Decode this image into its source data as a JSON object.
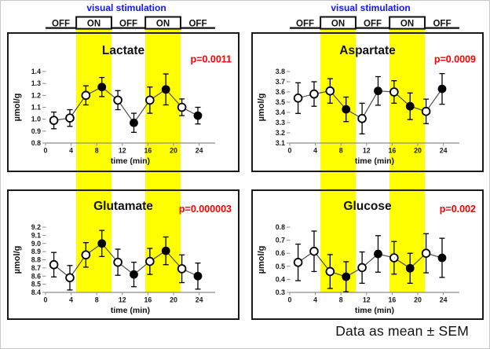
{
  "figure": {
    "caption": "Data as mean ± SEM",
    "colors": {
      "stimulation_blue": "#1414ff",
      "p_value_red": "#ff0000",
      "band_yellow": "#ffff00",
      "marker_black": "#000000",
      "axis_gray": "#8c8c8c",
      "line_gray": "#4d4d4d"
    }
  },
  "stimulation_header": {
    "title": "visual stimulation",
    "sequence": [
      "OFF",
      "ON",
      "OFF",
      "ON",
      "OFF"
    ],
    "on_periods_min": [
      [
        4.8,
        10.3
      ],
      [
        15.6,
        21.1
      ]
    ]
  },
  "chart_data": [
    {
      "type": "line",
      "column": 0,
      "slot": "top",
      "title": "Lactate",
      "p_label": "p=0.0011",
      "ylabel": "µmol/g",
      "xlabel": "time (min)",
      "ylim": [
        0.8,
        1.4
      ],
      "y_tick_step": 0.1,
      "y_decimals": 1,
      "xlim": [
        0,
        26.5
      ],
      "xticks": [
        0,
        4,
        8,
        12,
        16,
        20,
        24
      ],
      "on_bands_min": [
        [
          4.8,
          10.3
        ],
        [
          15.6,
          21.1
        ]
      ],
      "x": [
        1.3,
        3.8,
        6.3,
        8.8,
        11.3,
        13.8,
        16.3,
        18.8,
        21.3,
        23.8
      ],
      "y": [
        0.99,
        1.01,
        1.2,
        1.27,
        1.16,
        0.97,
        1.16,
        1.25,
        1.1,
        1.03
      ],
      "sem": [
        0.07,
        0.07,
        0.08,
        0.08,
        0.08,
        0.08,
        0.11,
        0.13,
        0.07,
        0.07
      ],
      "filled": [
        false,
        false,
        false,
        true,
        false,
        true,
        false,
        true,
        false,
        true
      ]
    },
    {
      "type": "line",
      "column": 1,
      "slot": "top",
      "title": "Aspartate",
      "p_label": "p=0.0009",
      "ylabel": "µmol/g",
      "xlabel": "time (min)",
      "ylim": [
        3.1,
        3.8
      ],
      "y_tick_step": 0.1,
      "y_decimals": 1,
      "xlim": [
        0,
        26.5
      ],
      "xticks": [
        0,
        4,
        8,
        12,
        16,
        20,
        24
      ],
      "on_bands_min": [
        [
          4.8,
          10.3
        ],
        [
          15.6,
          21.1
        ]
      ],
      "x": [
        1.3,
        3.8,
        6.3,
        8.8,
        11.3,
        13.8,
        16.3,
        18.8,
        21.3,
        23.8
      ],
      "y": [
        3.54,
        3.58,
        3.61,
        3.43,
        3.34,
        3.61,
        3.6,
        3.46,
        3.41,
        3.63
      ],
      "sem": [
        0.15,
        0.12,
        0.12,
        0.12,
        0.15,
        0.14,
        0.11,
        0.13,
        0.12,
        0.15
      ],
      "filled": [
        false,
        false,
        false,
        true,
        false,
        true,
        false,
        true,
        false,
        true
      ]
    },
    {
      "type": "line",
      "column": 0,
      "slot": "bottom",
      "title": "Glutamate",
      "p_label": "p=0.000003",
      "ylabel": "µmol/g",
      "xlabel": "time (min)",
      "ylim": [
        8.4,
        9.2
      ],
      "y_tick_step": 0.1,
      "y_decimals": 1,
      "xlim": [
        0,
        26.5
      ],
      "xticks": [
        0,
        4,
        8,
        12,
        16,
        20,
        24
      ],
      "on_bands_min": [
        [
          4.8,
          10.3
        ],
        [
          15.6,
          21.1
        ]
      ],
      "x": [
        1.3,
        3.8,
        6.3,
        8.8,
        11.3,
        13.8,
        16.3,
        18.8,
        21.3,
        23.8
      ],
      "y": [
        8.74,
        8.58,
        8.86,
        9.0,
        8.77,
        8.62,
        8.78,
        8.91,
        8.69,
        8.6
      ],
      "sem": [
        0.15,
        0.15,
        0.15,
        0.16,
        0.16,
        0.15,
        0.16,
        0.17,
        0.17,
        0.16
      ],
      "filled": [
        false,
        false,
        false,
        true,
        false,
        true,
        false,
        true,
        false,
        true
      ]
    },
    {
      "type": "line",
      "column": 1,
      "slot": "bottom",
      "title": "Glucose",
      "p_label": "p=0.002",
      "ylabel": "µmol/g",
      "xlabel": "time (min)",
      "ylim": [
        0.3,
        0.8
      ],
      "y_tick_step": 0.1,
      "y_decimals": 1,
      "xlim": [
        0,
        26.5
      ],
      "xticks": [
        0,
        4,
        8,
        12,
        16,
        20,
        24
      ],
      "on_bands_min": [
        [
          4.8,
          10.3
        ],
        [
          15.6,
          21.1
        ]
      ],
      "x": [
        1.3,
        3.8,
        6.3,
        8.8,
        11.3,
        13.8,
        16.3,
        18.8,
        21.3,
        23.8
      ],
      "y": [
        0.53,
        0.615,
        0.46,
        0.42,
        0.49,
        0.595,
        0.565,
        0.485,
        0.6,
        0.565
      ],
      "sem": [
        0.14,
        0.155,
        0.13,
        0.115,
        0.12,
        0.14,
        0.125,
        0.115,
        0.15,
        0.15
      ],
      "filled": [
        false,
        false,
        false,
        true,
        false,
        true,
        false,
        true,
        false,
        true
      ]
    }
  ]
}
